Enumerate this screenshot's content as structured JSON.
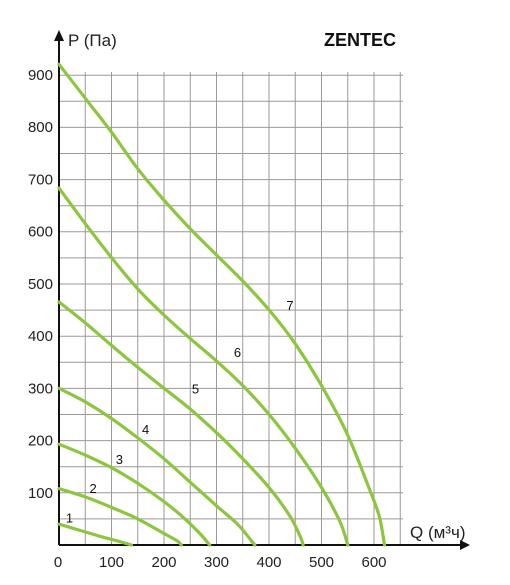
{
  "brand": "ZENTEC",
  "chart_data": {
    "type": "line",
    "title": "",
    "xlabel": "Q (м³ч)",
    "ylabel": "P (Па)",
    "xlim": [
      0,
      650
    ],
    "ylim": [
      0,
      920
    ],
    "x_ticks": [
      "0",
      "100",
      "200",
      "300",
      "400",
      "500",
      "600"
    ],
    "y_ticks": [
      "100",
      "200",
      "300",
      "400",
      "500",
      "600",
      "700",
      "800",
      "900"
    ],
    "grid": true,
    "line_color": "#8cc63f",
    "series": [
      {
        "name": "1",
        "label_at": [
          20,
          43
        ],
        "points": [
          [
            0,
            40
          ],
          [
            40,
            28
          ],
          [
            80,
            16
          ],
          [
            110,
            8
          ],
          [
            138,
            0
          ]
        ]
      },
      {
        "name": "2",
        "label_at": [
          65,
          100
        ],
        "points": [
          [
            0,
            108
          ],
          [
            50,
            92
          ],
          [
            100,
            72
          ],
          [
            150,
            50
          ],
          [
            200,
            22
          ],
          [
            225,
            8
          ],
          [
            233,
            0
          ]
        ]
      },
      {
        "name": "3",
        "label_at": [
          115,
          155
        ],
        "points": [
          [
            0,
            193
          ],
          [
            50,
            172
          ],
          [
            100,
            148
          ],
          [
            150,
            118
          ],
          [
            200,
            83
          ],
          [
            240,
            50
          ],
          [
            270,
            20
          ],
          [
            287,
            0
          ]
        ]
      },
      {
        "name": "4",
        "label_at": [
          165,
          212
        ],
        "points": [
          [
            0,
            300
          ],
          [
            50,
            274
          ],
          [
            100,
            242
          ],
          [
            150,
            205
          ],
          [
            200,
            165
          ],
          [
            250,
            120
          ],
          [
            300,
            75
          ],
          [
            340,
            40
          ],
          [
            365,
            10
          ],
          [
            373,
            0
          ]
        ]
      },
      {
        "name": "5",
        "label_at": [
          260,
          290
        ],
        "points": [
          [
            0,
            465
          ],
          [
            50,
            425
          ],
          [
            100,
            382
          ],
          [
            150,
            340
          ],
          [
            200,
            300
          ],
          [
            250,
            260
          ],
          [
            300,
            215
          ],
          [
            350,
            165
          ],
          [
            400,
            110
          ],
          [
            440,
            55
          ],
          [
            460,
            15
          ],
          [
            465,
            0
          ]
        ]
      },
      {
        "name": "6",
        "label_at": [
          340,
          360
        ],
        "points": [
          [
            0,
            683
          ],
          [
            50,
            615
          ],
          [
            100,
            550
          ],
          [
            150,
            490
          ],
          [
            200,
            440
          ],
          [
            250,
            395
          ],
          [
            300,
            352
          ],
          [
            350,
            305
          ],
          [
            400,
            250
          ],
          [
            450,
            185
          ],
          [
            500,
            110
          ],
          [
            535,
            45
          ],
          [
            550,
            0
          ]
        ]
      },
      {
        "name": "7",
        "label_at": [
          440,
          450
        ],
        "points": [
          [
            0,
            920
          ],
          [
            50,
            855
          ],
          [
            100,
            790
          ],
          [
            150,
            720
          ],
          [
            200,
            660
          ],
          [
            250,
            605
          ],
          [
            300,
            555
          ],
          [
            350,
            505
          ],
          [
            400,
            450
          ],
          [
            450,
            385
          ],
          [
            500,
            305
          ],
          [
            550,
            210
          ],
          [
            590,
            110
          ],
          [
            610,
            55
          ],
          [
            620,
            0
          ]
        ]
      }
    ]
  }
}
